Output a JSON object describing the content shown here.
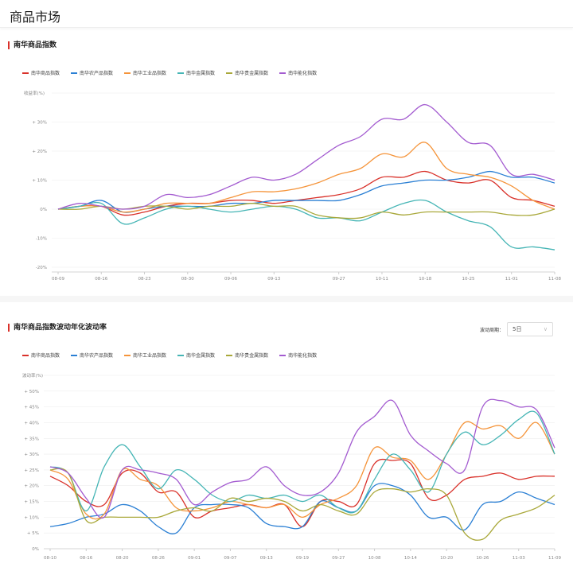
{
  "header": {
    "title": "商品市场"
  },
  "colors": [
    "#d9312a",
    "#2a7fd4",
    "#f5943a",
    "#45b5b5",
    "#a9a83a",
    "#a35bd0"
  ],
  "chart_data": [
    {
      "type": "line",
      "title": "南华商品指数",
      "ylabel": "收益率(%)",
      "ylim": [
        -20,
        40
      ],
      "yticks": [
        "-20%",
        "-10%",
        "0%",
        "+ 10%",
        "+ 20%",
        "+ 30%"
      ],
      "ytick_values": [
        -20,
        -10,
        0,
        10,
        20,
        30
      ],
      "x": [
        "08-09",
        "08-12",
        "08-16",
        "08-19",
        "08-23",
        "08-26",
        "08-30",
        "09-02",
        "09-06",
        "09-09",
        "09-13",
        "09-18",
        "09-24",
        "09-27",
        "10-08",
        "10-11",
        "10-15",
        "10-18",
        "10-22",
        "10-25",
        "10-29",
        "11-01",
        "11-05",
        "11-08"
      ],
      "xticks": [
        "08-09",
        "08-16",
        "08-23",
        "08-30",
        "09-06",
        "09-13",
        "09-27",
        "10-11",
        "10-18",
        "10-25",
        "11-01",
        "11-08"
      ],
      "series": [
        {
          "name": "南华商品指数",
          "values": [
            0,
            1,
            1,
            -2,
            -1,
            1,
            2,
            2,
            3,
            3,
            2,
            3,
            4,
            5,
            7,
            11,
            11,
            13,
            10,
            9,
            10,
            4,
            3,
            1
          ]
        },
        {
          "name": "南华农产品指数",
          "values": [
            0,
            1,
            3,
            -1,
            0,
            1,
            1,
            1,
            2,
            2,
            3,
            3,
            3,
            3,
            5,
            8,
            9,
            10,
            10,
            11,
            13,
            11,
            11,
            9
          ]
        },
        {
          "name": "南华工业品指数",
          "values": [
            0,
            1,
            1,
            -1,
            0,
            2,
            2,
            2,
            4,
            6,
            6,
            7,
            9,
            12,
            14,
            19,
            18,
            23,
            14,
            12,
            11,
            8,
            3,
            0
          ]
        },
        {
          "name": "南华金属指数",
          "values": [
            0,
            1,
            2,
            -5,
            -3,
            0,
            1,
            0,
            -1,
            0,
            1,
            0,
            -3,
            -3,
            -4,
            -1,
            2,
            3,
            -1,
            -4,
            -6,
            -13,
            -13,
            -14
          ]
        },
        {
          "name": "南华贵金属指数",
          "values": [
            0,
            0,
            1,
            0,
            1,
            1,
            0,
            1,
            1,
            2,
            1,
            1,
            -2,
            -3,
            -3,
            -1,
            -2,
            -1,
            -1,
            -1,
            -1,
            -2,
            -2,
            0
          ]
        },
        {
          "name": "南华能化指数",
          "values": [
            0,
            2,
            1,
            0,
            1,
            5,
            4,
            5,
            8,
            11,
            10,
            12,
            17,
            22,
            25,
            31,
            31,
            36,
            30,
            23,
            22,
            12,
            12,
            10
          ]
        }
      ]
    },
    {
      "type": "line",
      "title": "南华商品指数波动年化波动率",
      "ylabel": "波动率(%)",
      "ylim": [
        0,
        55
      ],
      "yticks": [
        "0%",
        "+ 5%",
        "+ 10%",
        "+ 15%",
        "+ 20%",
        "+ 25%",
        "+ 30%",
        "+ 35%",
        "+ 40%",
        "+ 45%",
        "+ 50%"
      ],
      "ytick_values": [
        0,
        5,
        10,
        15,
        20,
        25,
        30,
        35,
        40,
        45,
        50
      ],
      "x": [
        "08-10",
        "08-13",
        "08-16",
        "08-18",
        "08-20",
        "08-23",
        "08-26",
        "08-28",
        "09-01",
        "09-04",
        "09-07",
        "09-10",
        "09-13",
        "09-17",
        "09-19",
        "09-24",
        "09-27",
        "09-30",
        "10-08",
        "10-10",
        "10-14",
        "10-17",
        "10-20",
        "10-23",
        "10-26",
        "10-30",
        "11-03",
        "11-06",
        "11-09"
      ],
      "xticks": [
        "08-10",
        "08-16",
        "08-20",
        "08-26",
        "09-01",
        "09-07",
        "09-13",
        "09-19",
        "09-27",
        "10-08",
        "10-14",
        "10-20",
        "10-26",
        "11-03",
        "11-09"
      ],
      "series": [
        {
          "name": "南华商品指数",
          "values": [
            23,
            20,
            15,
            14,
            24,
            24,
            18,
            18,
            10,
            12,
            13,
            14,
            13,
            14,
            7,
            15,
            15,
            14,
            27,
            28,
            27,
            16,
            17,
            22,
            23,
            24,
            22,
            23,
            23
          ]
        },
        {
          "name": "南华农产品指数",
          "values": [
            7,
            8,
            10,
            11,
            14,
            12,
            7,
            5,
            13,
            14,
            14,
            13,
            8,
            7,
            7,
            15,
            13,
            12,
            20,
            20,
            17,
            10,
            10,
            6,
            14,
            15,
            18,
            16,
            14
          ]
        },
        {
          "name": "南华工业品指数",
          "values": [
            25,
            22,
            11,
            11,
            25,
            22,
            20,
            13,
            12,
            13,
            15,
            14,
            13,
            14,
            10,
            14,
            16,
            20,
            32,
            29,
            28,
            22,
            30,
            40,
            38,
            39,
            35,
            40,
            30
          ]
        },
        {
          "name": "南华金属指数",
          "values": [
            26,
            24,
            12,
            26,
            33,
            26,
            19,
            25,
            22,
            17,
            15,
            17,
            16,
            17,
            15,
            17,
            13,
            12,
            22,
            30,
            25,
            18,
            30,
            37,
            33,
            36,
            41,
            43,
            30
          ]
        },
        {
          "name": "南华贵金属指数",
          "values": [
            25,
            24,
            9,
            10,
            10,
            10,
            10,
            12,
            13,
            12,
            16,
            15,
            16,
            15,
            12,
            14,
            12,
            11,
            18,
            19,
            18,
            19,
            17,
            5,
            3,
            9,
            11,
            13,
            17
          ]
        },
        {
          "name": "南华能化指数",
          "values": [
            26,
            24,
            16,
            10,
            25,
            25,
            24,
            22,
            14,
            18,
            21,
            22,
            26,
            20,
            17,
            18,
            24,
            37,
            42,
            47,
            36,
            31,
            27,
            25,
            45,
            47,
            45,
            44,
            32
          ]
        }
      ]
    }
  ],
  "period": {
    "label": "波动周期：",
    "value": "5日"
  }
}
